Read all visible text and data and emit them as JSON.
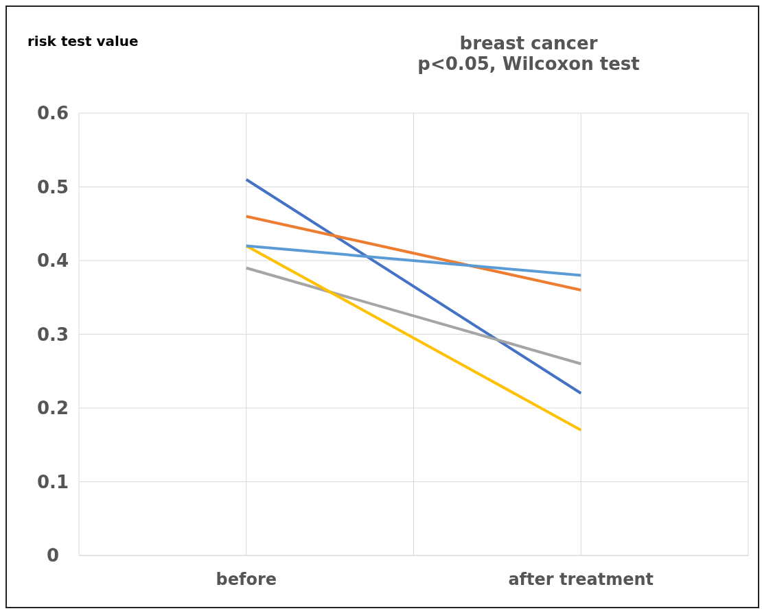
{
  "chart_data": {
    "type": "line",
    "title": "breast cancer",
    "subtitle": "p<0.05, Wilcoxon test",
    "ylabel": "risk test value",
    "categories": [
      "before",
      "after treatment"
    ],
    "series": [
      {
        "color": "#4472c4",
        "values": [
          0.51,
          0.22
        ]
      },
      {
        "color": "#ed7d31",
        "values": [
          0.46,
          0.36
        ]
      },
      {
        "color": "#a5a5a5",
        "values": [
          0.39,
          0.26
        ]
      },
      {
        "color": "#ffc000",
        "values": [
          0.42,
          0.17
        ]
      },
      {
        "color": "#5b9bd5",
        "values": [
          0.42,
          0.38
        ]
      }
    ],
    "ylim": [
      0,
      0.6
    ],
    "yticks": [
      0,
      0.1,
      0.2,
      0.3,
      0.4,
      0.5,
      0.6
    ],
    "grid": true,
    "marker": "none",
    "line_style": "solid"
  }
}
